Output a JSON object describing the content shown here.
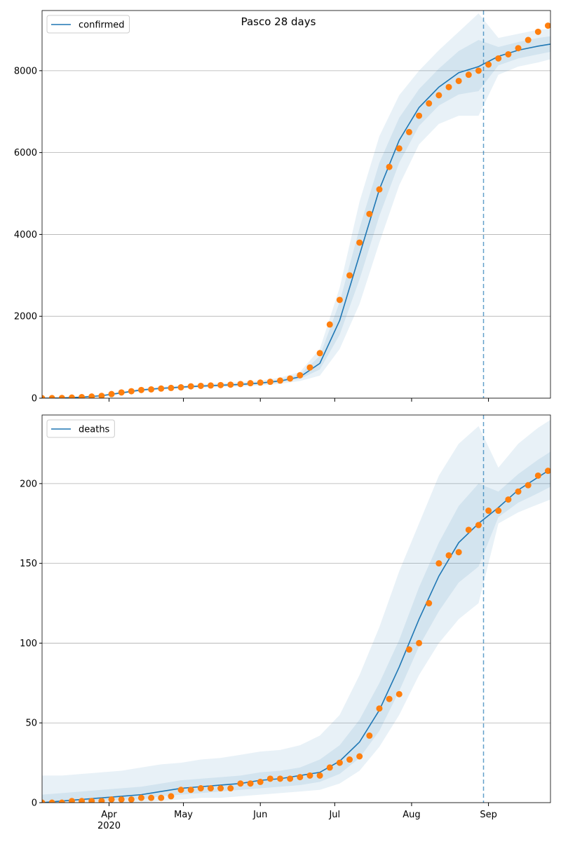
{
  "chart_data": [
    {
      "type": "line",
      "title": "Pasco 28 days",
      "xlim": [
        65,
        270
      ],
      "xticks": [
        92,
        122,
        153,
        183,
        214,
        245
      ],
      "ylim": [
        0,
        9470
      ],
      "yticks": [
        0,
        2000,
        4000,
        6000,
        8000
      ],
      "grid": "y",
      "legend": "upper left",
      "vline_x": 243,
      "vline_color": "#1f77b4",
      "series": [
        {
          "name": "confirmed",
          "color": "#1f77b4",
          "x": [
            65,
            73,
            81,
            89,
            97,
            105,
            113,
            121,
            129,
            137,
            145,
            153,
            161,
            169,
            177,
            185,
            193,
            201,
            209,
            217,
            225,
            233,
            241,
            249,
            257,
            265,
            270
          ],
          "values": [
            0,
            5,
            25,
            60,
            130,
            200,
            240,
            270,
            295,
            315,
            335,
            370,
            420,
            520,
            850,
            1900,
            3500,
            5100,
            6300,
            7100,
            7600,
            7950,
            8100,
            8350,
            8500,
            8600,
            8650
          ],
          "bands": [
            {
              "lower": [
                0,
                0,
                10,
                40,
                100,
                170,
                205,
                230,
                255,
                270,
                285,
                310,
                350,
                420,
                550,
                1200,
                2300,
                3800,
                5200,
                6200,
                6700,
                6900,
                6900,
                7900,
                8100,
                8200,
                8280
              ],
              "upper": [
                10,
                20,
                45,
                85,
                160,
                235,
                280,
                310,
                340,
                365,
                390,
                430,
                500,
                640,
                1200,
                2700,
                4800,
                6400,
                7400,
                8000,
                8500,
                8950,
                9400,
                8800,
                8900,
                9000,
                9020
              ]
            },
            {
              "lower": [
                0,
                2,
                18,
                50,
                115,
                185,
                222,
                250,
                275,
                292,
                310,
                340,
                385,
                470,
                700,
                1550,
                2900,
                4450,
                5750,
                6650,
                7150,
                7420,
                7500,
                8130,
                8300,
                8400,
                8460
              ],
              "upper": [
                5,
                10,
                35,
                72,
                145,
                218,
                260,
                290,
                318,
                340,
                362,
                400,
                460,
                580,
                1030,
                2350,
                4150,
                5750,
                6850,
                7550,
                8050,
                8480,
                8750,
                8580,
                8700,
                8800,
                8840
              ]
            }
          ]
        },
        {
          "color": "#ff7f0e",
          "marker": "circle",
          "x": [
            65,
            69,
            73,
            77,
            81,
            85,
            89,
            93,
            97,
            101,
            105,
            109,
            113,
            117,
            121,
            125,
            129,
            133,
            137,
            141,
            145,
            149,
            153,
            157,
            161,
            165,
            169,
            173,
            177,
            181,
            185,
            189,
            193,
            197,
            201,
            205,
            209,
            213,
            217,
            221,
            225,
            229,
            233,
            237,
            241,
            245,
            249,
            253,
            257,
            261,
            265,
            269
          ],
          "values": [
            0,
            2,
            5,
            15,
            25,
            40,
            55,
            100,
            140,
            170,
            200,
            215,
            235,
            250,
            265,
            290,
            300,
            310,
            320,
            330,
            345,
            365,
            380,
            400,
            430,
            480,
            560,
            750,
            1100,
            1800,
            2400,
            3000,
            3800,
            4500,
            5100,
            5650,
            6100,
            6500,
            6900,
            7200,
            7400,
            7600,
            7750,
            7900,
            8000,
            8150,
            8300,
            8400,
            8550,
            8750,
            8950,
            9100
          ]
        }
      ]
    },
    {
      "type": "line",
      "xlim": [
        65,
        270
      ],
      "xticks": [
        {
          "value": 92,
          "label": "Apr\n2020"
        },
        {
          "value": 122,
          "label": "May"
        },
        {
          "value": 153,
          "label": "Jun"
        },
        {
          "value": 183,
          "label": "Jul"
        },
        {
          "value": 214,
          "label": "Aug"
        },
        {
          "value": 245,
          "label": "Sep"
        }
      ],
      "ylim": [
        0,
        243
      ],
      "yticks": [
        0,
        50,
        100,
        150,
        200
      ],
      "grid": "y",
      "legend": "upper left",
      "vline_x": 243,
      "vline_color": "#1f77b4",
      "series": [
        {
          "name": "deaths",
          "color": "#1f77b4",
          "x": [
            65,
            73,
            81,
            89,
            97,
            105,
            113,
            121,
            129,
            137,
            145,
            153,
            161,
            169,
            177,
            185,
            193,
            201,
            209,
            217,
            225,
            233,
            241,
            249,
            257,
            265,
            270
          ],
          "values": [
            0,
            1,
            2,
            3,
            4,
            5,
            7,
            9,
            10,
            11,
            12,
            14,
            15,
            17,
            19,
            26,
            38,
            58,
            85,
            115,
            142,
            163,
            175,
            185,
            196,
            204,
            209
          ],
          "bands": [
            {
              "lower": [
                0,
                0,
                0,
                0,
                0,
                0,
                1,
                2,
                3,
                3,
                4,
                5,
                6,
                7,
                8,
                12,
                20,
                35,
                55,
                80,
                100,
                115,
                125,
                175,
                182,
                187,
                190
              ],
              "upper": [
                17,
                17,
                18,
                19,
                20,
                22,
                24,
                25,
                27,
                28,
                30,
                32,
                33,
                36,
                42,
                55,
                80,
                110,
                145,
                175,
                205,
                225,
                236,
                210,
                225,
                235,
                240
              ]
            },
            {
              "lower": [
                0,
                0,
                1,
                1,
                2,
                2,
                4,
                5,
                6,
                7,
                8,
                9,
                10,
                11,
                13,
                18,
                28,
                45,
                70,
                98,
                120,
                138,
                148,
                179,
                188,
                194,
                198
              ],
              "upper": [
                5,
                6,
                7,
                8,
                9,
                10,
                12,
                14,
                15,
                16,
                17,
                19,
                20,
                22,
                27,
                36,
                52,
                75,
                102,
                135,
                163,
                186,
                200,
                195,
                206,
                215,
                220
              ]
            }
          ]
        },
        {
          "color": "#ff7f0e",
          "marker": "circle",
          "x": [
            65,
            69,
            73,
            77,
            81,
            85,
            89,
            93,
            97,
            101,
            105,
            109,
            113,
            117,
            121,
            125,
            129,
            133,
            137,
            141,
            145,
            149,
            153,
            157,
            161,
            165,
            169,
            173,
            177,
            181,
            185,
            189,
            193,
            197,
            201,
            205,
            209,
            213,
            217,
            221,
            225,
            229,
            233,
            237,
            241,
            245,
            249,
            253,
            257,
            261,
            265,
            269
          ],
          "values": [
            0,
            0,
            0,
            1,
            1,
            1,
            1,
            2,
            2,
            2,
            3,
            3,
            3,
            4,
            8,
            8,
            9,
            9,
            9,
            9,
            12,
            12,
            13,
            15,
            15,
            15,
            16,
            17,
            17,
            22,
            25,
            27,
            29,
            42,
            59,
            65,
            68,
            96,
            100,
            125,
            150,
            155,
            157,
            171,
            174,
            183,
            183,
            190,
            195,
            199,
            205,
            208
          ]
        }
      ]
    }
  ]
}
